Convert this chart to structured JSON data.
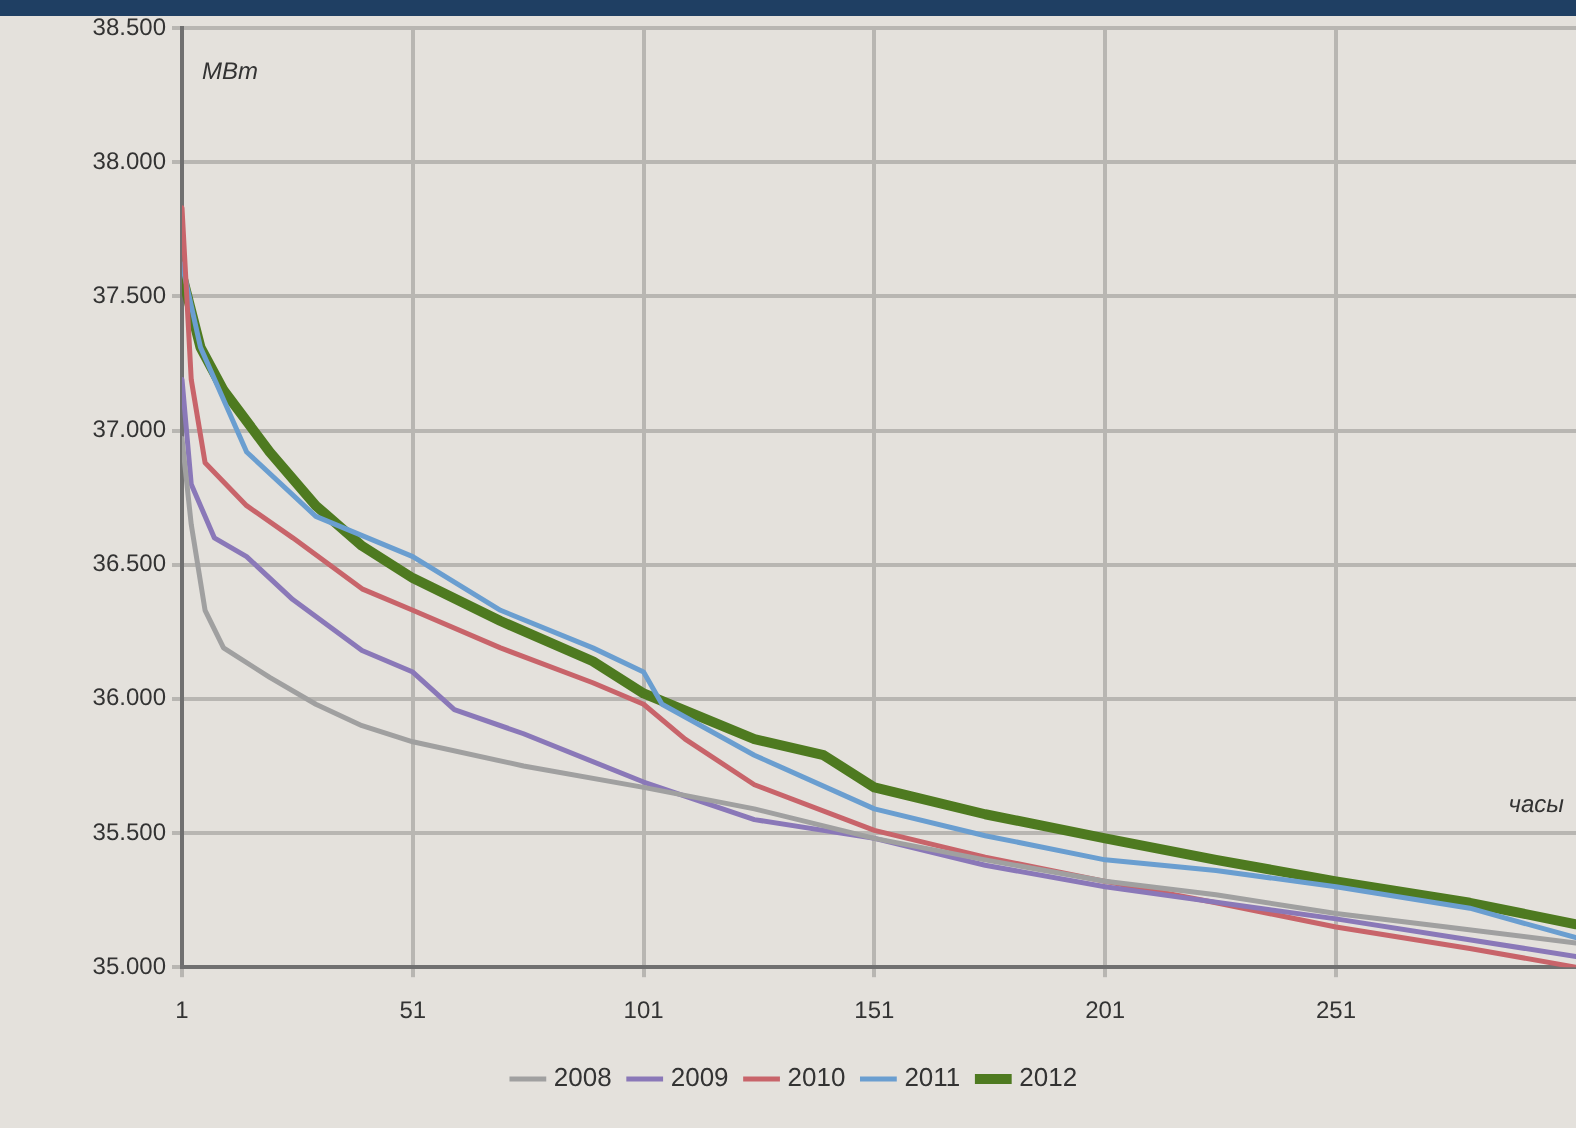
{
  "chart_data": {
    "type": "line",
    "xlabel": "часы",
    "ylabel": "МВт",
    "xlim": [
      1,
      303
    ],
    "xticks": [
      1,
      51,
      101,
      151,
      201,
      251
    ],
    "ylim": [
      35000,
      38500
    ],
    "yticks": [
      {
        "value": 35000,
        "label": "35.000"
      },
      {
        "value": 35500,
        "label": "35.500"
      },
      {
        "value": 36000,
        "label": "36.000"
      },
      {
        "value": 36500,
        "label": "36.500"
      },
      {
        "value": 37000,
        "label": "37.000"
      },
      {
        "value": 37500,
        "label": "37.500"
      },
      {
        "value": 38000,
        "label": "38.000"
      },
      {
        "value": 38500,
        "label": "38.500"
      }
    ],
    "grid": true,
    "legend": "bottom",
    "marker": "none",
    "line_style": "solid",
    "series": [
      {
        "name": "2008",
        "color": "#a0a0a0",
        "x": [
          1,
          3,
          6,
          10,
          20,
          30,
          40,
          51,
          75,
          101,
          125,
          151,
          175,
          201,
          225,
          251,
          275,
          303
        ],
        "values": [
          36970,
          36650,
          36330,
          36190,
          36080,
          35980,
          35900,
          35840,
          35750,
          35670,
          35590,
          35480,
          35400,
          35320,
          35270,
          35200,
          35150,
          35090
        ]
      },
      {
        "name": "2009",
        "color": "#8a78b8",
        "x": [
          1,
          3,
          8,
          15,
          25,
          40,
          51,
          60,
          75,
          101,
          125,
          151,
          175,
          201,
          251,
          303
        ],
        "values": [
          37190,
          36800,
          36600,
          36530,
          36370,
          36180,
          36100,
          35960,
          35870,
          35690,
          35550,
          35480,
          35380,
          35300,
          35180,
          35040
        ]
      },
      {
        "name": "2010",
        "color": "#c8646a",
        "x": [
          1,
          3,
          6,
          15,
          25,
          40,
          51,
          70,
          90,
          101,
          110,
          125,
          151,
          175,
          201,
          225,
          251,
          280,
          303
        ],
        "values": [
          37830,
          37190,
          36880,
          36720,
          36600,
          36410,
          36330,
          36190,
          36060,
          35980,
          35850,
          35680,
          35510,
          35410,
          35320,
          35240,
          35150,
          35070,
          35000
        ]
      },
      {
        "name": "2011",
        "color": "#6a9ed0",
        "x": [
          1,
          5,
          15,
          30,
          51,
          70,
          90,
          101,
          105,
          125,
          151,
          175,
          201,
          225,
          251,
          280,
          303
        ],
        "values": [
          37620,
          37310,
          36920,
          36680,
          36530,
          36330,
          36190,
          36100,
          35980,
          35790,
          35590,
          35490,
          35400,
          35360,
          35300,
          35220,
          35110
        ]
      },
      {
        "name": "2012",
        "color": "#4e7a20",
        "x": [
          1,
          5,
          10,
          20,
          30,
          40,
          51,
          70,
          90,
          101,
          125,
          140,
          151,
          175,
          201,
          225,
          251,
          280,
          303
        ],
        "values": [
          37580,
          37310,
          37150,
          36920,
          36720,
          36570,
          36450,
          36290,
          36140,
          36020,
          35850,
          35790,
          35670,
          35570,
          35480,
          35400,
          35320,
          35240,
          35160
        ]
      }
    ]
  }
}
